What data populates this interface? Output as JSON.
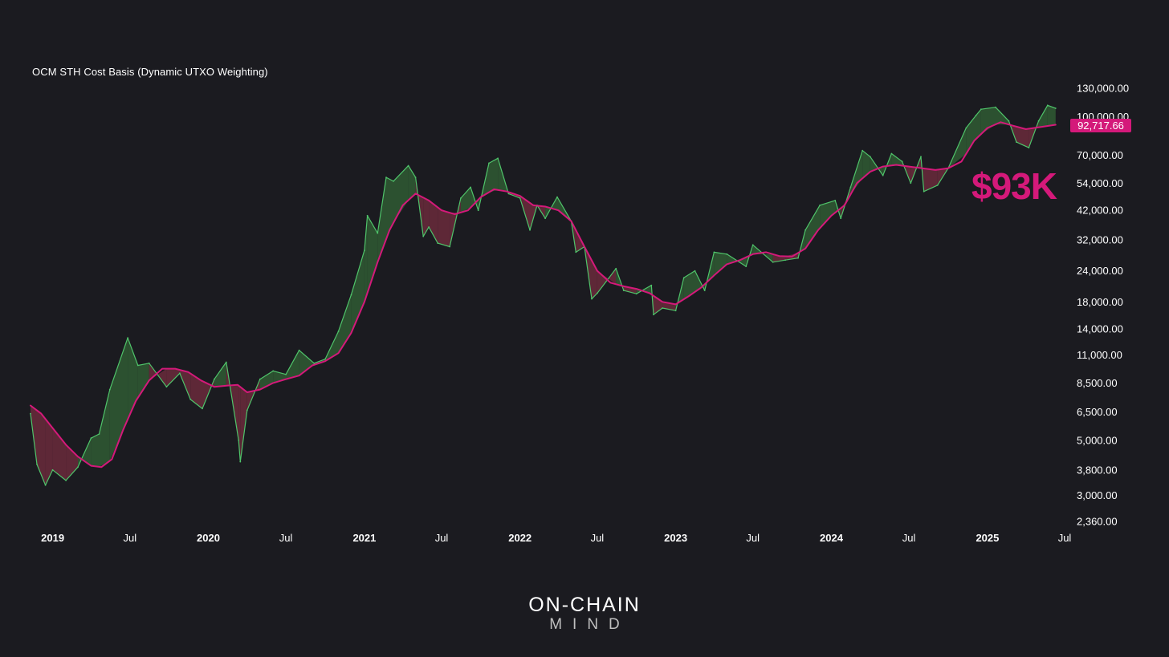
{
  "chart_data": {
    "type": "line",
    "title": "OCM STH Cost Basis (Dynamic UTXO Weighting)",
    "y_scale": "log",
    "ylim": [
      2360,
      130000
    ],
    "y_ticks": [
      130000,
      100000,
      70000,
      54000,
      42000,
      32000,
      24000,
      18000,
      14000,
      11000,
      8500,
      6500,
      5000,
      3800,
      3000,
      2360
    ],
    "y_tick_labels": [
      "130,000.00",
      "100,000.00",
      "70,000.00",
      "54,000.00",
      "42,000.00",
      "32,000.00",
      "24,000.00",
      "18,000.00",
      "14,000.00",
      "11,000.00",
      "8,500.00",
      "6,500.00",
      "5,000.00",
      "3,800.00",
      "3,000.00",
      "2,360.00"
    ],
    "x_ticks": [
      {
        "date": "2019-01-01",
        "label": "2019",
        "bold": true
      },
      {
        "date": "2019-07-01",
        "label": "Jul",
        "bold": false
      },
      {
        "date": "2020-01-01",
        "label": "2020",
        "bold": true
      },
      {
        "date": "2020-07-01",
        "label": "Jul",
        "bold": false
      },
      {
        "date": "2021-01-01",
        "label": "2021",
        "bold": true
      },
      {
        "date": "2021-07-01",
        "label": "Jul",
        "bold": false
      },
      {
        "date": "2022-01-01",
        "label": "2022",
        "bold": true
      },
      {
        "date": "2022-07-01",
        "label": "Jul",
        "bold": false
      },
      {
        "date": "2023-01-01",
        "label": "2023",
        "bold": true
      },
      {
        "date": "2023-07-01",
        "label": "Jul",
        "bold": false
      },
      {
        "date": "2024-01-01",
        "label": "2024",
        "bold": true
      },
      {
        "date": "2024-07-01",
        "label": "Jul",
        "bold": false
      },
      {
        "date": "2025-01-01",
        "label": "2025",
        "bold": true
      },
      {
        "date": "2025-07-01",
        "label": "Jul",
        "bold": false
      }
    ],
    "x_range": [
      "2018-11-10",
      "2025-07-01"
    ],
    "colors": {
      "cost_basis": "#d4197a",
      "price": "#4fc46a",
      "fill_above": "#2f5a34",
      "fill_below": "#6a2a3c"
    },
    "series": [
      {
        "name": "STH Cost Basis",
        "points": [
          [
            "2018-11-10",
            6900
          ],
          [
            "2018-12-05",
            6400
          ],
          [
            "2019-01-01",
            5600
          ],
          [
            "2019-02-01",
            4800
          ],
          [
            "2019-03-01",
            4300
          ],
          [
            "2019-04-01",
            3950
          ],
          [
            "2019-04-25",
            3900
          ],
          [
            "2019-05-20",
            4200
          ],
          [
            "2019-06-15",
            5500
          ],
          [
            "2019-07-15",
            7200
          ],
          [
            "2019-08-15",
            8700
          ],
          [
            "2019-09-15",
            9700
          ],
          [
            "2019-10-15",
            9700
          ],
          [
            "2019-11-15",
            9400
          ],
          [
            "2019-12-15",
            8700
          ],
          [
            "2020-01-15",
            8200
          ],
          [
            "2020-02-15",
            8300
          ],
          [
            "2020-03-10",
            8350
          ],
          [
            "2020-04-01",
            7800
          ],
          [
            "2020-05-01",
            8000
          ],
          [
            "2020-06-01",
            8500
          ],
          [
            "2020-07-01",
            8800
          ],
          [
            "2020-08-01",
            9100
          ],
          [
            "2020-09-01",
            10000
          ],
          [
            "2020-10-01",
            10400
          ],
          [
            "2020-11-01",
            11200
          ],
          [
            "2020-12-01",
            13500
          ],
          [
            "2021-01-01",
            18000
          ],
          [
            "2021-02-01",
            26000
          ],
          [
            "2021-03-01",
            35000
          ],
          [
            "2021-04-01",
            44000
          ],
          [
            "2021-05-01",
            49000
          ],
          [
            "2021-06-01",
            46000
          ],
          [
            "2021-07-01",
            42000
          ],
          [
            "2021-08-01",
            40500
          ],
          [
            "2021-09-01",
            42000
          ],
          [
            "2021-10-01",
            47500
          ],
          [
            "2021-11-01",
            51000
          ],
          [
            "2021-12-01",
            50000
          ],
          [
            "2022-01-01",
            48000
          ],
          [
            "2022-02-01",
            44000
          ],
          [
            "2022-03-01",
            43500
          ],
          [
            "2022-04-01",
            42000
          ],
          [
            "2022-05-01",
            38000
          ],
          [
            "2022-06-01",
            30000
          ],
          [
            "2022-07-01",
            24000
          ],
          [
            "2022-08-01",
            21500
          ],
          [
            "2022-09-01",
            20800
          ],
          [
            "2022-10-01",
            20300
          ],
          [
            "2022-11-01",
            19500
          ],
          [
            "2022-12-01",
            18000
          ],
          [
            "2023-01-01",
            17600
          ],
          [
            "2023-02-01",
            19000
          ],
          [
            "2023-03-01",
            20500
          ],
          [
            "2023-04-01",
            23000
          ],
          [
            "2023-05-01",
            25500
          ],
          [
            "2023-06-01",
            26500
          ],
          [
            "2023-07-01",
            28000
          ],
          [
            "2023-08-01",
            28500
          ],
          [
            "2023-09-01",
            27500
          ],
          [
            "2023-10-01",
            27400
          ],
          [
            "2023-11-01",
            29500
          ],
          [
            "2023-12-01",
            35000
          ],
          [
            "2024-01-01",
            40000
          ],
          [
            "2024-02-01",
            44000
          ],
          [
            "2024-03-01",
            54000
          ],
          [
            "2024-04-01",
            60000
          ],
          [
            "2024-05-01",
            63000
          ],
          [
            "2024-06-01",
            64000
          ],
          [
            "2024-07-01",
            63000
          ],
          [
            "2024-08-01",
            62000
          ],
          [
            "2024-09-01",
            61000
          ],
          [
            "2024-10-01",
            62000
          ],
          [
            "2024-11-01",
            66000
          ],
          [
            "2024-12-01",
            80000
          ],
          [
            "2025-01-01",
            90000
          ],
          [
            "2025-02-01",
            95000
          ],
          [
            "2025-03-01",
            92000
          ],
          [
            "2025-04-01",
            89000
          ],
          [
            "2025-05-10",
            91000
          ],
          [
            "2025-06-10",
            92717.66
          ]
        ]
      },
      {
        "name": "BTC Price",
        "points": [
          [
            "2018-11-10",
            6400
          ],
          [
            "2018-11-25",
            4000
          ],
          [
            "2018-12-15",
            3300
          ],
          [
            "2019-01-01",
            3800
          ],
          [
            "2019-02-01",
            3450
          ],
          [
            "2019-03-01",
            3900
          ],
          [
            "2019-04-01",
            5100
          ],
          [
            "2019-04-20",
            5300
          ],
          [
            "2019-05-15",
            8000
          ],
          [
            "2019-06-26",
            12900
          ],
          [
            "2019-07-20",
            10000
          ],
          [
            "2019-08-15",
            10200
          ],
          [
            "2019-09-25",
            8200
          ],
          [
            "2019-10-26",
            9300
          ],
          [
            "2019-11-20",
            7300
          ],
          [
            "2019-12-18",
            6700
          ],
          [
            "2020-01-15",
            8800
          ],
          [
            "2020-02-12",
            10300
          ],
          [
            "2020-03-12",
            5000
          ],
          [
            "2020-03-16",
            4100
          ],
          [
            "2020-04-01",
            6600
          ],
          [
            "2020-05-01",
            8800
          ],
          [
            "2020-06-01",
            9500
          ],
          [
            "2020-07-01",
            9200
          ],
          [
            "2020-08-01",
            11500
          ],
          [
            "2020-09-05",
            10200
          ],
          [
            "2020-10-01",
            10600
          ],
          [
            "2020-11-01",
            13700
          ],
          [
            "2020-12-01",
            19200
          ],
          [
            "2021-01-01",
            29000
          ],
          [
            "2021-01-08",
            40000
          ],
          [
            "2021-02-01",
            34000
          ],
          [
            "2021-02-21",
            57000
          ],
          [
            "2021-03-10",
            55000
          ],
          [
            "2021-04-14",
            63500
          ],
          [
            "2021-05-01",
            57000
          ],
          [
            "2021-05-19",
            33000
          ],
          [
            "2021-06-01",
            36000
          ],
          [
            "2021-06-22",
            31000
          ],
          [
            "2021-07-20",
            30000
          ],
          [
            "2021-08-15",
            47000
          ],
          [
            "2021-09-07",
            52000
          ],
          [
            "2021-09-25",
            42000
          ],
          [
            "2021-10-20",
            65000
          ],
          [
            "2021-11-10",
            68000
          ],
          [
            "2021-12-05",
            49000
          ],
          [
            "2022-01-01",
            47000
          ],
          [
            "2022-01-24",
            35000
          ],
          [
            "2022-02-10",
            44000
          ],
          [
            "2022-03-01",
            39000
          ],
          [
            "2022-03-29",
            47500
          ],
          [
            "2022-05-01",
            38000
          ],
          [
            "2022-05-12",
            28500
          ],
          [
            "2022-06-01",
            30000
          ],
          [
            "2022-06-18",
            18500
          ],
          [
            "2022-07-01",
            19500
          ],
          [
            "2022-08-14",
            24500
          ],
          [
            "2022-09-01",
            20000
          ],
          [
            "2022-10-01",
            19400
          ],
          [
            "2022-11-05",
            21000
          ],
          [
            "2022-11-10",
            16000
          ],
          [
            "2022-12-01",
            17000
          ],
          [
            "2023-01-01",
            16600
          ],
          [
            "2023-01-20",
            22500
          ],
          [
            "2023-02-15",
            24000
          ],
          [
            "2023-03-10",
            20000
          ],
          [
            "2023-04-01",
            28500
          ],
          [
            "2023-05-01",
            28000
          ],
          [
            "2023-06-15",
            25000
          ],
          [
            "2023-07-01",
            30500
          ],
          [
            "2023-08-17",
            26000
          ],
          [
            "2023-09-15",
            26500
          ],
          [
            "2023-10-15",
            27000
          ],
          [
            "2023-11-01",
            35000
          ],
          [
            "2023-12-05",
            44000
          ],
          [
            "2024-01-10",
            46000
          ],
          [
            "2024-01-23",
            39000
          ],
          [
            "2024-02-15",
            52000
          ],
          [
            "2024-03-14",
            73000
          ],
          [
            "2024-04-01",
            69000
          ],
          [
            "2024-05-01",
            58000
          ],
          [
            "2024-05-21",
            71000
          ],
          [
            "2024-06-15",
            66000
          ],
          [
            "2024-07-05",
            54000
          ],
          [
            "2024-07-29",
            69000
          ],
          [
            "2024-08-05",
            50000
          ],
          [
            "2024-09-06",
            53000
          ],
          [
            "2024-10-01",
            62000
          ],
          [
            "2024-11-12",
            90000
          ],
          [
            "2024-12-05",
            101000
          ],
          [
            "2024-12-17",
            107000
          ],
          [
            "2025-01-20",
            109000
          ],
          [
            "2025-02-20",
            96000
          ],
          [
            "2025-03-10",
            79000
          ],
          [
            "2025-04-08",
            75000
          ],
          [
            "2025-05-01",
            96000
          ],
          [
            "2025-05-22",
            111000
          ],
          [
            "2025-06-10",
            108000
          ]
        ]
      }
    ],
    "current_value_label": "92,717.66",
    "annotation": "$93K",
    "grid": false,
    "legend": "none"
  },
  "brand": {
    "main": "ON-CHAIN",
    "sub": "MIND"
  }
}
